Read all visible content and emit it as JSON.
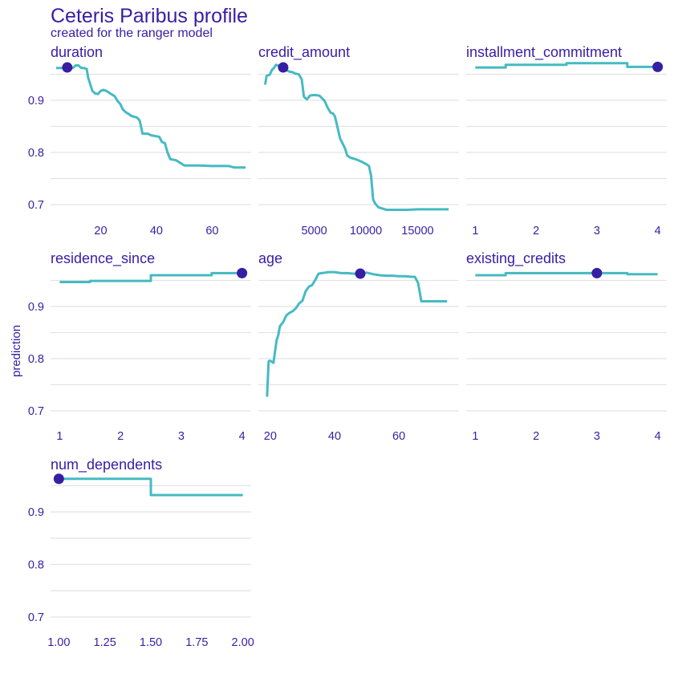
{
  "title": "Ceteris Paribus profile",
  "subtitle": "created for the ranger model",
  "ylabel": "prediction",
  "colors": {
    "line": "#46bac2",
    "point": "#371ea3",
    "text": "#371ea3",
    "grid": "#e1e3e6"
  },
  "chart_data": {
    "type": "line",
    "facets": 7,
    "shared_y": {
      "ylim": [
        0.675,
        0.985
      ],
      "ticks": [
        0.7,
        0.8,
        0.9
      ]
    },
    "panels": [
      {
        "name": "duration",
        "xlim": [
          2,
          74
        ],
        "xticks": [
          20,
          40,
          60
        ],
        "xticklabels": [
          "20",
          "40",
          "60"
        ],
        "series": [
          {
            "x": [
              4,
              6,
              8,
              10,
              11,
              12,
              13,
              14,
              15,
              15.5,
              16,
              17,
              18,
              19,
              20,
              21,
              22,
              24,
              25,
              26,
              27,
              28,
              29,
              30,
              31,
              33,
              34,
              35,
              36,
              37,
              38,
              40,
              41,
              42,
              43,
              44,
              45,
              47,
              50,
              55,
              60,
              63,
              66,
              68,
              70,
              72
            ],
            "y": [
              0.962,
              0.962,
              0.962,
              0.962,
              0.967,
              0.967,
              0.962,
              0.962,
              0.96,
              0.943,
              0.935,
              0.918,
              0.913,
              0.912,
              0.918,
              0.92,
              0.918,
              0.911,
              0.908,
              0.899,
              0.893,
              0.882,
              0.877,
              0.874,
              0.87,
              0.867,
              0.861,
              0.836,
              0.836,
              0.836,
              0.833,
              0.831,
              0.83,
              0.82,
              0.818,
              0.8,
              0.787,
              0.785,
              0.775,
              0.775,
              0.774,
              0.774,
              0.774,
              0.771,
              0.771,
              0.771
            ]
          }
        ],
        "point": {
          "x": 8,
          "y": 0.963
        }
      },
      {
        "name": "credit_amount",
        "xlim": [
          -400,
          19000
        ],
        "xticks": [
          5000,
          10000,
          15000
        ],
        "xticklabels": [
          "5000",
          "10000",
          "15000"
        ],
        "series": [
          {
            "x": [
              250,
              400,
              700,
              900,
              1100,
              1300,
              1500,
              1800,
              2000,
              2300,
              2600,
              2900,
              3200,
              3500,
              3800,
              4000,
              4150,
              4300,
              4600,
              4900,
              5100,
              5500,
              6000,
              6300,
              6600,
              6800,
              7000,
              7200,
              7500,
              7800,
              8000,
              8200,
              8500,
              9000,
              9500,
              10000,
              10300,
              10500,
              10700,
              10900,
              11200,
              11500,
              12000,
              12500,
              13000,
              14000,
              15000,
              16000,
              17000,
              18000
            ],
            "y": [
              0.93,
              0.947,
              0.949,
              0.958,
              0.962,
              0.968,
              0.967,
              0.962,
              0.961,
              0.958,
              0.955,
              0.954,
              0.951,
              0.95,
              0.94,
              0.907,
              0.904,
              0.902,
              0.909,
              0.91,
              0.91,
              0.909,
              0.899,
              0.886,
              0.876,
              0.875,
              0.869,
              0.853,
              0.827,
              0.815,
              0.807,
              0.794,
              0.79,
              0.787,
              0.783,
              0.778,
              0.774,
              0.755,
              0.71,
              0.702,
              0.695,
              0.693,
              0.69,
              0.69,
              0.69,
              0.69,
              0.691,
              0.691,
              0.691,
              0.691
            ]
          }
        ],
        "point": {
          "x": 2000,
          "y": 0.963
        }
      },
      {
        "name": "installment_commitment",
        "xlim": [
          0.85,
          4.15
        ],
        "xticks": [
          1,
          2,
          3,
          4
        ],
        "xticklabels": [
          "1",
          "2",
          "3",
          "4"
        ],
        "series": [
          {
            "x": [
              1,
              1.5,
              1.5,
              2.5,
              2.5,
              3.5,
              3.5,
              4
            ],
            "y": [
              0.963,
              0.963,
              0.968,
              0.968,
              0.971,
              0.971,
              0.964,
              0.964
            ]
          }
        ],
        "point": {
          "x": 4,
          "y": 0.964
        }
      },
      {
        "name": "residence_since",
        "xlim": [
          0.85,
          4.15
        ],
        "xticks": [
          1,
          2,
          3,
          4
        ],
        "xticklabels": [
          "1",
          "2",
          "3",
          "4"
        ],
        "series": [
          {
            "x": [
              1,
              1.5,
              1.5,
              2.5,
              2.5,
              3.5,
              3.5,
              4
            ],
            "y": [
              0.947,
              0.947,
              0.949,
              0.949,
              0.96,
              0.96,
              0.964,
              0.964
            ]
          }
        ],
        "point": {
          "x": 4,
          "y": 0.964
        }
      },
      {
        "name": "age",
        "xlim": [
          16.3,
          78.7
        ],
        "xticks": [
          20,
          40,
          60
        ],
        "xticklabels": [
          "20",
          "40",
          "60"
        ],
        "series": [
          {
            "x": [
              19,
              19.5,
              20,
              21,
              22,
              22.5,
              23,
              24,
              25,
              26,
              27,
              28,
              29,
              30,
              31,
              32,
              33,
              34,
              35,
              36,
              37,
              38,
              40,
              42,
              44,
              46,
              48,
              50,
              52,
              54,
              56,
              58,
              60,
              62,
              64,
              65,
              66,
              67,
              68,
              70,
              72,
              75
            ],
            "y": [
              0.727,
              0.795,
              0.796,
              0.792,
              0.836,
              0.845,
              0.862,
              0.87,
              0.883,
              0.888,
              0.891,
              0.897,
              0.906,
              0.911,
              0.929,
              0.938,
              0.941,
              0.951,
              0.963,
              0.964,
              0.965,
              0.966,
              0.966,
              0.964,
              0.964,
              0.963,
              0.963,
              0.965,
              0.962,
              0.96,
              0.959,
              0.959,
              0.958,
              0.958,
              0.957,
              0.957,
              0.945,
              0.91,
              0.91,
              0.91,
              0.91,
              0.91
            ]
          }
        ],
        "point": {
          "x": 48,
          "y": 0.963
        }
      },
      {
        "name": "existing_credits",
        "xlim": [
          0.85,
          4.15
        ],
        "xticks": [
          1,
          2,
          3,
          4
        ],
        "xticklabels": [
          "1",
          "2",
          "3",
          "4"
        ],
        "series": [
          {
            "x": [
              1,
              1.5,
              1.5,
              2.5,
              2.5,
              3.5,
              3.5,
              4
            ],
            "y": [
              0.96,
              0.96,
              0.964,
              0.964,
              0.964,
              0.964,
              0.962,
              0.962
            ]
          }
        ],
        "point": {
          "x": 3,
          "y": 0.964
        }
      },
      {
        "name": "num_dependents",
        "xlim": [
          0.955,
          2.045
        ],
        "xticks": [
          1,
          1.25,
          1.5,
          1.75,
          2
        ],
        "xticklabels": [
          "1.00",
          "1.25",
          "1.50",
          "1.75",
          "2.00"
        ],
        "series": [
          {
            "x": [
              1,
              1.5,
              1.5,
              2
            ],
            "y": [
              0.963,
              0.963,
              0.932,
              0.932
            ]
          }
        ],
        "point": {
          "x": 1,
          "y": 0.963
        }
      }
    ]
  }
}
